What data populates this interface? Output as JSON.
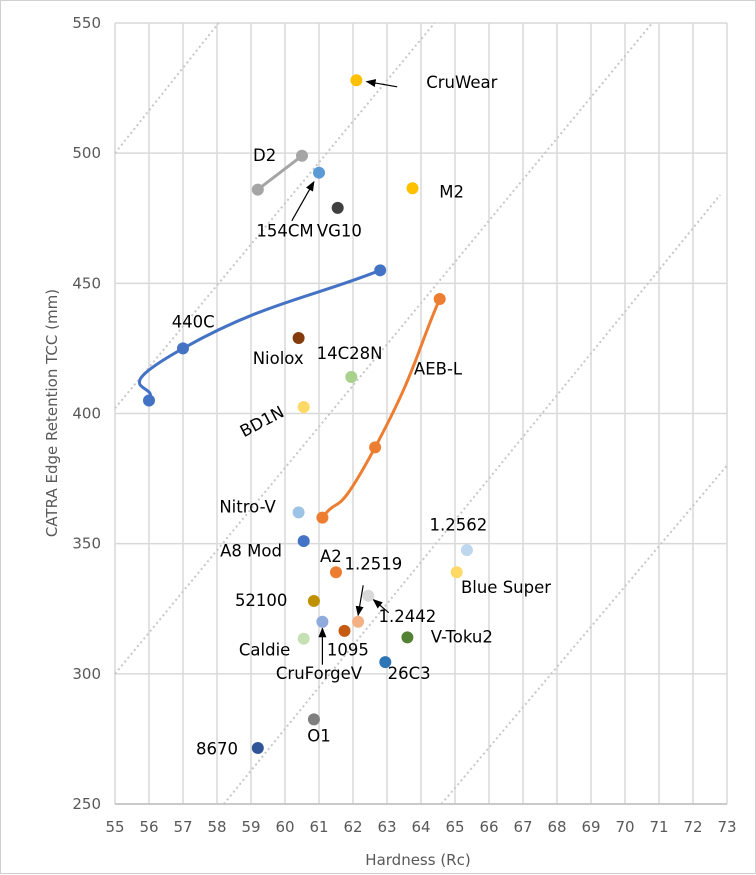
{
  "chart_data": {
    "type": "scatter",
    "title": "",
    "xlabel": "Hardness (Rc)",
    "ylabel": "CATRA Edge Retention TCC (mm)",
    "xlim": [
      55,
      73
    ],
    "ylim": [
      250,
      550
    ],
    "xticks": [
      "55",
      "56",
      "57",
      "58",
      "59",
      "60",
      "61",
      "62",
      "63",
      "64",
      "65",
      "66",
      "67",
      "68",
      "69",
      "70",
      "71",
      "72",
      "73"
    ],
    "yticks": [
      "250",
      "300",
      "350",
      "400",
      "450",
      "500",
      "550"
    ],
    "grid": true,
    "legend": "none",
    "reference_lines": [
      {
        "name": "ref-line-1",
        "points": [
          [
            55,
            500
          ],
          [
            58.05,
            550
          ]
        ]
      },
      {
        "name": "ref-line-2",
        "points": [
          [
            55,
            402
          ],
          [
            64.4,
            550
          ]
        ]
      },
      {
        "name": "ref-line-3",
        "points": [
          [
            55,
            300
          ],
          [
            70.8,
            550
          ]
        ]
      },
      {
        "name": "ref-line-4",
        "points": [
          [
            58.2,
            250
          ],
          [
            72.8,
            484
          ]
        ]
      },
      {
        "name": "ref-line-5",
        "points": [
          [
            64.6,
            250
          ],
          [
            73,
            380
          ]
        ]
      }
    ],
    "lines": [
      {
        "name": "440C",
        "color": "#4472c4",
        "points": [
          [
            56.0,
            405
          ],
          [
            57.0,
            425
          ],
          [
            62.8,
            455
          ]
        ],
        "label_at": [
          57.3,
          433
        ]
      },
      {
        "name": "AEB-L",
        "color": "#ed7d31",
        "points": [
          [
            61.1,
            360
          ],
          [
            62.65,
            387
          ],
          [
            64.55,
            444
          ]
        ],
        "label_at": [
          64.5,
          415
        ]
      },
      {
        "name": "D2",
        "color": "#a5a5a5",
        "points": [
          [
            59.2,
            486
          ],
          [
            60.5,
            499
          ]
        ],
        "label_at": [
          59.4,
          497
        ]
      }
    ],
    "points": [
      {
        "name": "CruWear",
        "x": 62.1,
        "y": 528,
        "color": "#ffc000",
        "label_at": [
          65.2,
          525
        ],
        "anchor": "middle",
        "arrow": true
      },
      {
        "name": "154CM",
        "x": 61.0,
        "y": 492.5,
        "color": "#5b9bd5",
        "label_at": [
          60.0,
          468
        ],
        "anchor": "middle",
        "arrow": true
      },
      {
        "name": "VG10",
        "x": 61.55,
        "y": 479,
        "color": "#404040",
        "label_at": [
          61.6,
          468
        ],
        "anchor": "middle"
      },
      {
        "name": "M2",
        "x": 63.75,
        "y": 486.5,
        "color": "#ffc000",
        "label_at": [
          64.9,
          483
        ],
        "anchor": "middle"
      },
      {
        "name": "Niolox",
        "x": 60.4,
        "y": 429,
        "color": "#843c0c",
        "label_at": [
          59.8,
          419
        ],
        "anchor": "middle"
      },
      {
        "name": "14C28N",
        "x": 61.95,
        "y": 414,
        "color": "#a9d18e",
        "label_at": [
          61.9,
          421
        ],
        "anchor": "middle"
      },
      {
        "name": "BD1N",
        "x": 60.55,
        "y": 402.5,
        "color": "#ffd966",
        "label_at": [
          59.4,
          395
        ],
        "anchor": "middle",
        "rotate": -28
      },
      {
        "name": "Nitro-V",
        "x": 60.4,
        "y": 362,
        "color": "#9dc3e6",
        "label_at": [
          58.9,
          362
        ],
        "anchor": "middle"
      },
      {
        "name": "A8 Mod",
        "x": 60.55,
        "y": 351,
        "color": "#4472c4",
        "label_at": [
          59.0,
          345
        ],
        "anchor": "middle"
      },
      {
        "name": "A2",
        "x": 61.5,
        "y": 339,
        "color": "#ed7d31",
        "label_at": [
          61.35,
          343
        ],
        "anchor": "middle"
      },
      {
        "name": "1.2519",
        "x": 62.15,
        "y": 320,
        "color": "#f4b183",
        "label_at": [
          62.6,
          340
        ],
        "anchor": "middle",
        "arrow": true
      },
      {
        "name": "1.2442",
        "x": 62.45,
        "y": 330,
        "color": "#d9d9d9",
        "label_at": [
          63.6,
          320
        ],
        "anchor": "middle",
        "arrow": true
      },
      {
        "name": "52100",
        "x": 60.85,
        "y": 328,
        "color": "#bf9000",
        "label_at": [
          59.3,
          326
        ],
        "anchor": "middle"
      },
      {
        "name": "CruForgeV",
        "x": 61.1,
        "y": 320,
        "color": "#8faadc",
        "label_at": [
          61.0,
          298
        ],
        "anchor": "middle",
        "arrow": true
      },
      {
        "name": "1095",
        "x": 61.75,
        "y": 316.5,
        "color": "#c55a11",
        "label_at": [
          61.85,
          307
        ],
        "anchor": "middle"
      },
      {
        "name": "Caldie",
        "x": 60.55,
        "y": 313.5,
        "color": "#c5e0b3",
        "label_at": [
          59.4,
          307
        ],
        "anchor": "middle"
      },
      {
        "name": "V-Toku2",
        "x": 63.6,
        "y": 314,
        "color": "#548235",
        "label_at": [
          65.2,
          312
        ],
        "anchor": "middle"
      },
      {
        "name": "26C3",
        "x": 62.95,
        "y": 304.5,
        "color": "#2e75b6",
        "label_at": [
          63.65,
          298
        ],
        "anchor": "middle"
      },
      {
        "name": "1.2562",
        "x": 65.35,
        "y": 347.5,
        "color": "#bdd7ee",
        "label_at": [
          65.1,
          355
        ],
        "anchor": "middle"
      },
      {
        "name": "Blue Super",
        "x": 65.05,
        "y": 339,
        "color": "#ffd966",
        "label_at": [
          66.5,
          331
        ],
        "anchor": "middle"
      },
      {
        "name": "O1",
        "x": 60.85,
        "y": 282.5,
        "color": "#7f7f7f",
        "label_at": [
          61.0,
          274
        ],
        "anchor": "middle"
      },
      {
        "name": "8670",
        "x": 59.2,
        "y": 271.5,
        "color": "#2f5597",
        "label_at": [
          58.0,
          269
        ],
        "anchor": "middle"
      }
    ],
    "arrows": [
      {
        "name": "cruwear-arrow",
        "from": [
          63.3,
          525.5
        ],
        "to": [
          62.4,
          527.5
        ]
      },
      {
        "name": "154cm-arrow",
        "from": [
          60.2,
          474
        ],
        "to": [
          60.85,
          489
        ]
      },
      {
        "name": "1.2519-arrow",
        "from": [
          62.3,
          334
        ],
        "to": [
          62.15,
          322.5
        ]
      },
      {
        "name": "1.2442-arrow",
        "from": [
          63.05,
          323.5
        ],
        "to": [
          62.6,
          328.5
        ]
      },
      {
        "name": "cruforgev-arrow",
        "from": [
          61.1,
          303.5
        ],
        "to": [
          61.1,
          317.5
        ]
      }
    ]
  }
}
